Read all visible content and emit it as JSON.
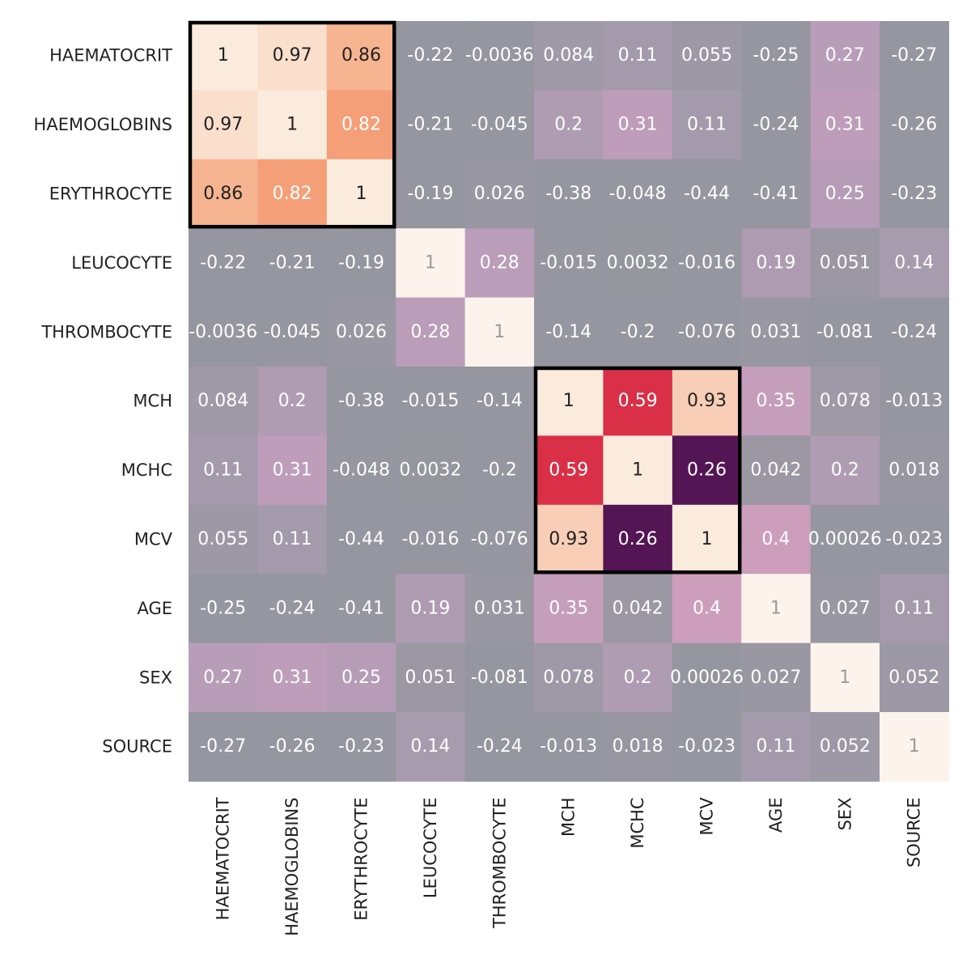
{
  "chart_data": {
    "type": "heatmap",
    "title": "",
    "xlabel": "",
    "ylabel": "",
    "rows": [
      "HAEMATOCRIT",
      "HAEMOGLOBINS",
      "ERYTHROCYTE",
      "LEUCOCYTE",
      "THROMBOCYTE",
      "MCH",
      "MCHC",
      "MCV",
      "AGE",
      "SEX",
      "SOURCE"
    ],
    "columns": [
      "HAEMATOCRIT",
      "HAEMOGLOBINS",
      "ERYTHROCYTE",
      "LEUCOCYTE",
      "THROMBOCYTE",
      "MCH",
      "MCHC",
      "MCV",
      "AGE",
      "SEX",
      "SOURCE"
    ],
    "values": [
      [
        1,
        0.97,
        0.86,
        -0.22,
        -0.0036,
        0.084,
        0.11,
        0.055,
        -0.25,
        0.27,
        -0.27
      ],
      [
        0.97,
        1,
        0.82,
        -0.21,
        -0.045,
        0.2,
        0.31,
        0.11,
        -0.24,
        0.31,
        -0.26
      ],
      [
        0.86,
        0.82,
        1,
        -0.19,
        0.026,
        -0.38,
        -0.048,
        -0.44,
        -0.41,
        0.25,
        -0.23
      ],
      [
        -0.22,
        -0.21,
        -0.19,
        1,
        0.28,
        -0.015,
        0.0032,
        -0.016,
        0.19,
        0.051,
        0.14
      ],
      [
        -0.0036,
        -0.045,
        0.026,
        0.28,
        1,
        -0.14,
        -0.2,
        -0.076,
        0.031,
        -0.081,
        -0.24
      ],
      [
        0.084,
        0.2,
        -0.38,
        -0.015,
        -0.14,
        1,
        0.59,
        0.93,
        0.35,
        0.078,
        -0.013
      ],
      [
        0.11,
        0.31,
        -0.048,
        0.0032,
        -0.2,
        0.59,
        1,
        0.26,
        0.042,
        0.2,
        0.018
      ],
      [
        0.055,
        0.11,
        -0.44,
        -0.016,
        -0.076,
        0.93,
        0.26,
        1,
        0.4,
        0.00026,
        -0.023
      ],
      [
        -0.25,
        -0.24,
        -0.41,
        0.19,
        0.031,
        0.35,
        0.042,
        0.4,
        1,
        0.027,
        0.11
      ],
      [
        0.27,
        0.31,
        0.25,
        0.051,
        -0.081,
        0.078,
        0.2,
        0.00026,
        0.027,
        1,
        0.052
      ],
      [
        -0.27,
        -0.26,
        -0.23,
        0.14,
        -0.24,
        -0.013,
        0.018,
        -0.023,
        0.11,
        0.052,
        1
      ]
    ],
    "labels": [
      [
        "1",
        "0.97",
        "0.86",
        "-0.22",
        "-0.0036",
        "0.084",
        "0.11",
        "0.055",
        "-0.25",
        "0.27",
        "-0.27"
      ],
      [
        "0.97",
        "1",
        "0.82",
        "-0.21",
        "-0.045",
        "0.2",
        "0.31",
        "0.11",
        "-0.24",
        "0.31",
        "-0.26"
      ],
      [
        "0.86",
        "0.82",
        "1",
        "-0.19",
        "0.026",
        "-0.38",
        "-0.048",
        "-0.44",
        "-0.41",
        "0.25",
        "-0.23"
      ],
      [
        "-0.22",
        "-0.21",
        "-0.19",
        "1",
        "0.28",
        "-0.015",
        "0.0032",
        "-0.016",
        "0.19",
        "0.051",
        "0.14"
      ],
      [
        "-0.0036",
        "-0.045",
        "0.026",
        "0.28",
        "1",
        "-0.14",
        "-0.2",
        "-0.076",
        "0.031",
        "-0.081",
        "-0.24"
      ],
      [
        "0.084",
        "0.2",
        "-0.38",
        "-0.015",
        "-0.14",
        "1",
        "0.59",
        "0.93",
        "0.35",
        "0.078",
        "-0.013"
      ],
      [
        "0.11",
        "0.31",
        "-0.048",
        "0.0032",
        "-0.2",
        "0.59",
        "1",
        "0.26",
        "0.042",
        "0.2",
        "0.018"
      ],
      [
        "0.055",
        "0.11",
        "-0.44",
        "-0.016",
        "-0.076",
        "0.93",
        "0.26",
        "1",
        "0.4",
        "0.00026",
        "-0.023"
      ],
      [
        "-0.25",
        "-0.24",
        "-0.41",
        "0.19",
        "0.031",
        "0.35",
        "0.042",
        "0.4",
        "1",
        "0.027",
        "0.11"
      ],
      [
        "0.27",
        "0.31",
        "0.25",
        "0.051",
        "-0.081",
        "0.078",
        "0.2",
        "0.00026",
        "0.027",
        "1",
        "0.052"
      ],
      [
        "-0.27",
        "-0.26",
        "-0.23",
        "0.14",
        "-0.24",
        "-0.013",
        "0.018",
        "-0.023",
        "0.11",
        "0.052",
        "1"
      ]
    ],
    "highlight_blocks": [
      {
        "rows": [
          "HAEMATOCRIT",
          "ERYTHROCYTE"
        ],
        "columns": [
          "HAEMATOCRIT",
          "ERYTHROCYTE"
        ]
      },
      {
        "rows": [
          "MCH",
          "MCV"
        ],
        "columns": [
          "MCH",
          "MCV"
        ]
      }
    ],
    "muted_cells": [
      [
        3,
        3
      ],
      [
        4,
        4
      ],
      [
        8,
        8
      ],
      [
        9,
        9
      ],
      [
        10,
        10
      ]
    ],
    "legend": "none",
    "grid": false
  }
}
